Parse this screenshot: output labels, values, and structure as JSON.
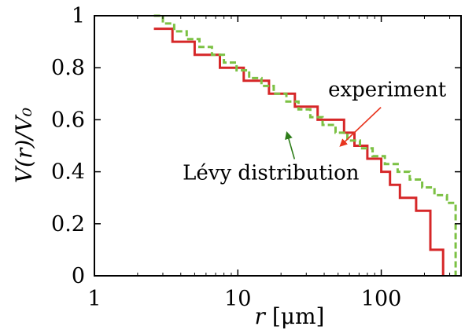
{
  "chart_data": {
    "type": "line",
    "xscale": "log",
    "xlim": [
      1,
      360
    ],
    "ylim": [
      0,
      1
    ],
    "xticks": [
      {
        "value": 1,
        "label": "1"
      },
      {
        "value": 10,
        "label": "10"
      },
      {
        "value": 100,
        "label": "100"
      }
    ],
    "yticks": [
      {
        "value": 0,
        "label": "0"
      },
      {
        "value": 0.2,
        "label": "0.2"
      },
      {
        "value": 0.4,
        "label": "0.4"
      },
      {
        "value": 0.6,
        "label": "0.6"
      },
      {
        "value": 0.8,
        "label": "0.8"
      },
      {
        "value": 1,
        "label": "1"
      }
    ],
    "xlabel": {
      "var": "r",
      "unit": " [μm]"
    },
    "ylabel": "V(r)/V₀",
    "grid": false,
    "series": [
      {
        "name": "experiment",
        "color": "#d62728",
        "style": "solid",
        "x": [
          2.6,
          3.5,
          3.5,
          5.0,
          5.0,
          7.5,
          7.5,
          11.0,
          11.0,
          16.5,
          16.5,
          25.0,
          25.0,
          36.0,
          36.0,
          55.0,
          55.0,
          65.0,
          65.0,
          80.0,
          80.0,
          100.0,
          100.0,
          115.0,
          115.0,
          135.0,
          135.0,
          175.0,
          175.0,
          220.0,
          220.0,
          270.0,
          270.0
        ],
        "y": [
          0.95,
          0.95,
          0.9,
          0.9,
          0.85,
          0.85,
          0.8,
          0.8,
          0.75,
          0.75,
          0.7,
          0.7,
          0.65,
          0.65,
          0.6,
          0.6,
          0.55,
          0.55,
          0.5,
          0.5,
          0.45,
          0.45,
          0.4,
          0.4,
          0.35,
          0.35,
          0.3,
          0.3,
          0.25,
          0.25,
          0.1,
          0.1,
          0.0
        ]
      },
      {
        "name": "Lévy distribution",
        "color": "#7cc144",
        "style": "dashed",
        "x": [
          2.6,
          3.0,
          3.0,
          3.6,
          3.6,
          4.4,
          4.4,
          5.4,
          5.4,
          6.6,
          6.6,
          8.0,
          8.0,
          9.8,
          9.8,
          12.0,
          12.0,
          14.6,
          14.6,
          17.8,
          17.8,
          21.8,
          21.8,
          26.5,
          26.5,
          32.0,
          32.0,
          39.0,
          39.0,
          48.0,
          48.0,
          58.0,
          58.0,
          71.0,
          71.0,
          87.0,
          87.0,
          106.0,
          106.0,
          130.0,
          130.0,
          158.0,
          158.0,
          193.0,
          193.0,
          235.0,
          235.0,
          287.0,
          287.0,
          330.0,
          330.0
        ],
        "y": [
          1.0,
          1.0,
          0.97,
          0.97,
          0.94,
          0.94,
          0.91,
          0.91,
          0.88,
          0.88,
          0.85,
          0.85,
          0.82,
          0.82,
          0.79,
          0.79,
          0.76,
          0.76,
          0.73,
          0.73,
          0.7,
          0.7,
          0.67,
          0.67,
          0.64,
          0.64,
          0.61,
          0.61,
          0.58,
          0.58,
          0.55,
          0.55,
          0.52,
          0.52,
          0.49,
          0.49,
          0.46,
          0.46,
          0.43,
          0.43,
          0.4,
          0.4,
          0.37,
          0.37,
          0.34,
          0.34,
          0.31,
          0.31,
          0.28,
          0.28,
          0.0
        ]
      }
    ],
    "annotations": [
      {
        "text": "experiment",
        "color": "#e8351f",
        "arrow_to": [
          52,
          0.5
        ],
        "text_at": [
          110,
          0.69
        ]
      },
      {
        "text": "Lévy distribution",
        "color": "#2e7d1a",
        "arrow_to": [
          22,
          0.55
        ],
        "text_at": [
          17,
          0.37
        ]
      }
    ]
  }
}
